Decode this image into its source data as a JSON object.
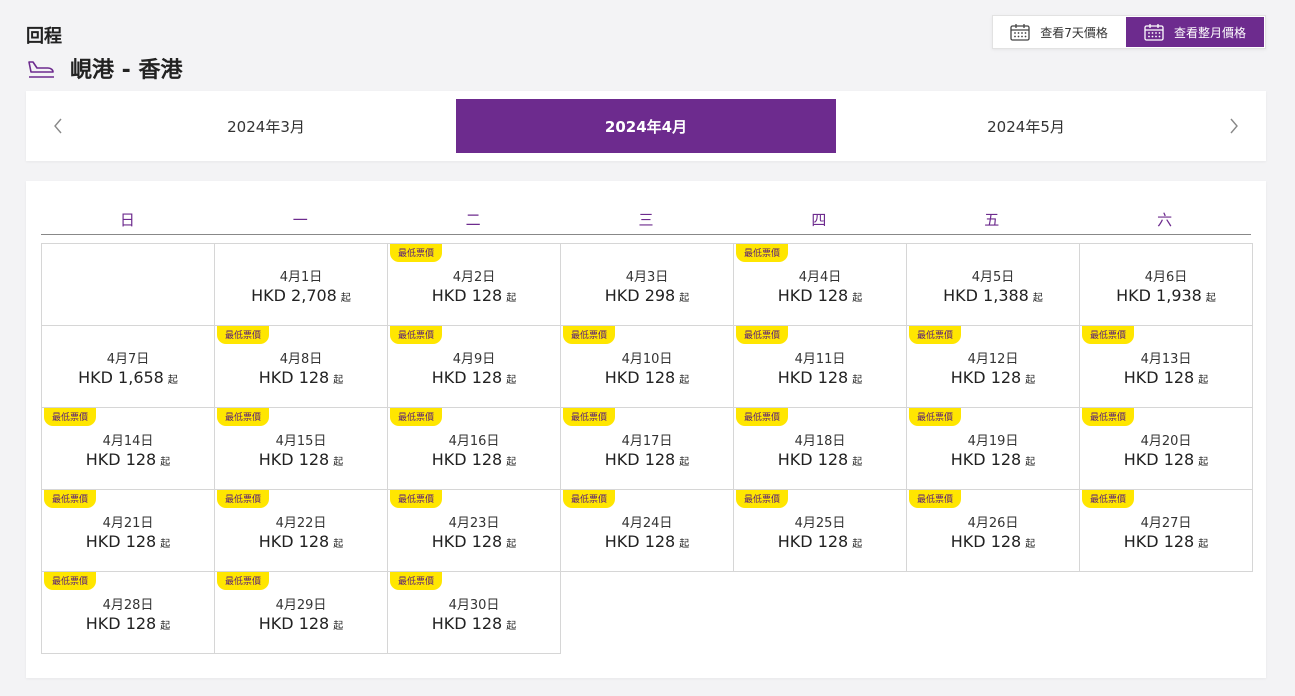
{
  "header": {
    "title": "回程",
    "route": "峴港 - 香港"
  },
  "view_toggle": {
    "week_label": "查看7天價格",
    "month_label": "查看整月價格"
  },
  "months": {
    "prev": "2024年3月",
    "current": "2024年4月",
    "next": "2024年5月"
  },
  "weekdays": [
    "日",
    "一",
    "二",
    "三",
    "四",
    "五",
    "六"
  ],
  "badge_label": "最低票價",
  "from_label": "起",
  "days": [
    {
      "date": "4月1日",
      "price": "HKD 2,708",
      "lowest": false
    },
    {
      "date": "4月2日",
      "price": "HKD 128",
      "lowest": true
    },
    {
      "date": "4月3日",
      "price": "HKD 298",
      "lowest": false
    },
    {
      "date": "4月4日",
      "price": "HKD 128",
      "lowest": true
    },
    {
      "date": "4月5日",
      "price": "HKD 1,388",
      "lowest": false
    },
    {
      "date": "4月6日",
      "price": "HKD 1,938",
      "lowest": false
    },
    {
      "date": "4月7日",
      "price": "HKD 1,658",
      "lowest": false
    },
    {
      "date": "4月8日",
      "price": "HKD 128",
      "lowest": true
    },
    {
      "date": "4月9日",
      "price": "HKD 128",
      "lowest": true
    },
    {
      "date": "4月10日",
      "price": "HKD 128",
      "lowest": true
    },
    {
      "date": "4月11日",
      "price": "HKD 128",
      "lowest": true
    },
    {
      "date": "4月12日",
      "price": "HKD 128",
      "lowest": true
    },
    {
      "date": "4月13日",
      "price": "HKD 128",
      "lowest": true
    },
    {
      "date": "4月14日",
      "price": "HKD 128",
      "lowest": true
    },
    {
      "date": "4月15日",
      "price": "HKD 128",
      "lowest": true
    },
    {
      "date": "4月16日",
      "price": "HKD 128",
      "lowest": true
    },
    {
      "date": "4月17日",
      "price": "HKD 128",
      "lowest": true
    },
    {
      "date": "4月18日",
      "price": "HKD 128",
      "lowest": true
    },
    {
      "date": "4月19日",
      "price": "HKD 128",
      "lowest": true
    },
    {
      "date": "4月20日",
      "price": "HKD 128",
      "lowest": true
    },
    {
      "date": "4月21日",
      "price": "HKD 128",
      "lowest": true
    },
    {
      "date": "4月22日",
      "price": "HKD 128",
      "lowest": true
    },
    {
      "date": "4月23日",
      "price": "HKD 128",
      "lowest": true
    },
    {
      "date": "4月24日",
      "price": "HKD 128",
      "lowest": true
    },
    {
      "date": "4月25日",
      "price": "HKD 128",
      "lowest": true
    },
    {
      "date": "4月26日",
      "price": "HKD 128",
      "lowest": true
    },
    {
      "date": "4月27日",
      "price": "HKD 128",
      "lowest": true
    },
    {
      "date": "4月28日",
      "price": "HKD 128",
      "lowest": true
    },
    {
      "date": "4月29日",
      "price": "HKD 128",
      "lowest": true
    },
    {
      "date": "4月30日",
      "price": "HKD 128",
      "lowest": true
    }
  ],
  "colors": {
    "brand": "#6d2b8e",
    "badge": "#ffe600"
  }
}
